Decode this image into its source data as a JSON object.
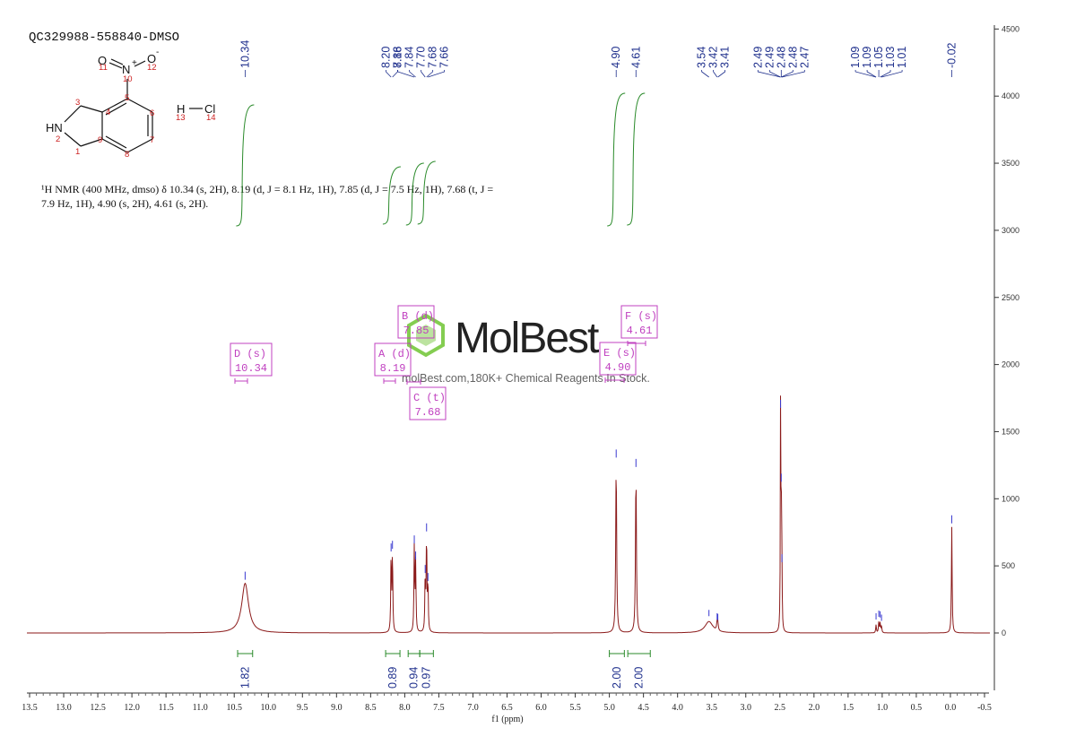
{
  "sample_id": "QC329988-558840-DMSO",
  "structure": {
    "atoms": {
      "O11": "O",
      "N10": "N",
      "plus": "+",
      "O12": "O",
      "minus": "-",
      "HN": "HN",
      "H13": "H",
      "Cl14": "Cl"
    },
    "numbers": [
      "1",
      "2",
      "3",
      "4",
      "5",
      "6",
      "7",
      "8",
      "9",
      "10",
      "11",
      "12",
      "13",
      "14"
    ]
  },
  "nmr_text": {
    "line1": "¹H NMR (400 MHz, dmso) δ 10.34 (s, 2H), 8.19 (d, J = 8.1 Hz, 1H), 7.85 (d, J = 7.5 Hz, 1H), 7.68 (t, J =",
    "line2": "7.9 Hz, 1H), 4.90 (s, 2H), 4.61 (s, 2H)."
  },
  "watermark": {
    "brand": "MolBest",
    "tagline": "molBest.com,180K+ Chemical Reagents In Stock."
  },
  "colors": {
    "spectrum": "#8b1a1a",
    "integral": "#2a8a2a",
    "peak_label": "#1e2f8c",
    "multiplet_box": "#c040c0",
    "watermark_green": "#7ac943"
  },
  "chart_data": {
    "type": "line",
    "xlabel": "f1 (ppm)",
    "xlim": [
      13.5,
      -0.5
    ],
    "ylim": [
      -500,
      4500
    ],
    "x_ticks": [
      "13.5",
      "13.0",
      "12.5",
      "12.0",
      "11.5",
      "11.0",
      "10.5",
      "10.0",
      "9.5",
      "9.0",
      "8.5",
      "8.0",
      "7.5",
      "7.0",
      "6.5",
      "6.0",
      "5.5",
      "5.0",
      "4.5",
      "4.0",
      "3.5",
      "3.0",
      "2.5",
      "2.0",
      "1.5",
      "1.0",
      "0.5",
      "0.0",
      "-0.5"
    ],
    "y_ticks": [
      "4500",
      "4000",
      "3500",
      "3000",
      "2500",
      "2000",
      "1500",
      "1000",
      "500",
      "0"
    ],
    "peaks": [
      {
        "ppm": 10.34,
        "height": 370,
        "width": 0.06
      },
      {
        "ppm": 8.2,
        "height": 580,
        "width": 0.006
      },
      {
        "ppm": 8.18,
        "height": 600,
        "width": 0.006
      },
      {
        "ppm": 7.86,
        "height": 640,
        "width": 0.006
      },
      {
        "ppm": 7.84,
        "height": 520,
        "width": 0.006
      },
      {
        "ppm": 7.7,
        "height": 420,
        "width": 0.006
      },
      {
        "ppm": 7.68,
        "height": 730,
        "width": 0.006
      },
      {
        "ppm": 7.66,
        "height": 360,
        "width": 0.006
      },
      {
        "ppm": 4.9,
        "height": 1280,
        "width": 0.008
      },
      {
        "ppm": 4.61,
        "height": 1210,
        "width": 0.008
      },
      {
        "ppm": 3.54,
        "height": 85,
        "width": 0.07
      },
      {
        "ppm": 3.42,
        "height": 60,
        "width": 0.008
      },
      {
        "ppm": 3.41,
        "height": 55,
        "width": 0.008
      },
      {
        "ppm": 2.49,
        "height": 1650,
        "width": 0.004
      },
      {
        "ppm": 2.48,
        "height": 1100,
        "width": 0.004
      },
      {
        "ppm": 2.47,
        "height": 500,
        "width": 0.004
      },
      {
        "ppm": 1.09,
        "height": 60,
        "width": 0.006
      },
      {
        "ppm": 1.05,
        "height": 80,
        "width": 0.006
      },
      {
        "ppm": 1.03,
        "height": 75,
        "width": 0.006
      },
      {
        "ppm": 1.01,
        "height": 50,
        "width": 0.006
      },
      {
        "ppm": -0.02,
        "height": 790,
        "width": 0.006
      }
    ],
    "peak_labels": [
      {
        "ppm": 10.34,
        "text": "10.34"
      },
      {
        "ppm": 8.2,
        "text": "8.20"
      },
      {
        "ppm": 8.18,
        "text": "8.18"
      },
      {
        "ppm": 7.86,
        "text": "7.86"
      },
      {
        "ppm": 7.84,
        "text": "7.84"
      },
      {
        "ppm": 7.7,
        "text": "7.70"
      },
      {
        "ppm": 7.68,
        "text": "7.68"
      },
      {
        "ppm": 7.66,
        "text": "7.66"
      },
      {
        "ppm": 4.9,
        "text": "4.90"
      },
      {
        "ppm": 4.61,
        "text": "4.61"
      },
      {
        "ppm": 3.54,
        "text": "3.54"
      },
      {
        "ppm": 3.42,
        "text": "3.42"
      },
      {
        "ppm": 3.41,
        "text": "3.41"
      },
      {
        "ppm": 2.49,
        "text": "2.49"
      },
      {
        "ppm": 2.49,
        "text": "2.49"
      },
      {
        "ppm": 2.48,
        "text": "2.48"
      },
      {
        "ppm": 2.48,
        "text": "2.48"
      },
      {
        "ppm": 2.47,
        "text": "2.47"
      },
      {
        "ppm": 1.09,
        "text": "1.09"
      },
      {
        "ppm": 1.09,
        "text": "1.09"
      },
      {
        "ppm": 1.05,
        "text": "1.05"
      },
      {
        "ppm": 1.03,
        "text": "1.03"
      },
      {
        "ppm": 1.01,
        "text": "1.01"
      },
      {
        "ppm": -0.02,
        "text": "-0.02"
      }
    ],
    "integrals": [
      {
        "from": 10.45,
        "to": 10.23,
        "value": "1.82"
      },
      {
        "from": 8.28,
        "to": 8.07,
        "value": "0.89"
      },
      {
        "from": 7.95,
        "to": 7.78,
        "value": "0.94"
      },
      {
        "from": 7.78,
        "to": 7.58,
        "value": "0.97"
      },
      {
        "from": 5.0,
        "to": 4.78,
        "value": "2.00"
      },
      {
        "from": 4.73,
        "to": 4.4,
        "value": "2.00"
      }
    ],
    "multiplets": [
      {
        "letter": "D",
        "mult": "s",
        "shift": "10.34"
      },
      {
        "letter": "A",
        "mult": "d",
        "shift": "8.19"
      },
      {
        "letter": "B",
        "mult": "d",
        "shift": "7.85"
      },
      {
        "letter": "C",
        "mult": "t",
        "shift": "7.68"
      },
      {
        "letter": "E",
        "mult": "s",
        "shift": "4.90"
      },
      {
        "letter": "F",
        "mult": "s",
        "shift": "4.61"
      }
    ]
  }
}
